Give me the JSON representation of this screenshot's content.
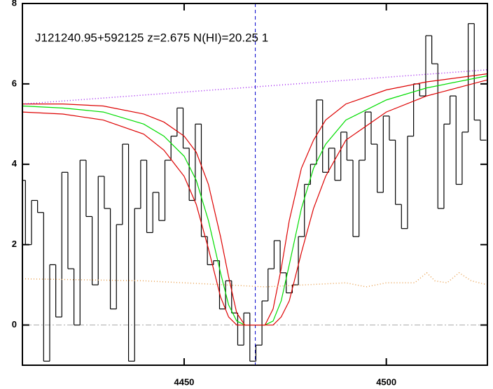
{
  "chart_data": {
    "type": "line",
    "title": "J121240.95+592125 z=2.675 N(HI)=20.25 1",
    "xlim": [
      4410,
      4525
    ],
    "ylim": [
      -1,
      8
    ],
    "xticks": [
      4450,
      4500
    ],
    "yticks": [
      0,
      2,
      4,
      6,
      8
    ],
    "hline": 0,
    "vline": 4467.6,
    "series": [
      {
        "color": "#000000",
        "style": "step",
        "x": [
          4410,
          4411.5,
          4413,
          4414.5,
          4416,
          4417.5,
          4419,
          4420.5,
          4422,
          4423.5,
          4425,
          4426.5,
          4428,
          4429.5,
          4431,
          4432.5,
          4434,
          4435.5,
          4437,
          4438.5,
          4440,
          4441.5,
          4443,
          4444.5,
          4446,
          4447.5,
          4449,
          4450.5,
          4452,
          4453.5,
          4455,
          4456.5,
          4458,
          4459.5,
          4461,
          4462.5,
          4464,
          4465.5,
          4467,
          4468.5,
          4470,
          4471.5,
          4473,
          4474.5,
          4476,
          4477.5,
          4479,
          4480.5,
          4482,
          4483.5,
          4485,
          4486.5,
          4488,
          4489.5,
          4491,
          4492.5,
          4494,
          4495.5,
          4497,
          4498.5,
          4500,
          4501.5,
          4503,
          4504.5,
          4506,
          4507.5,
          4509,
          4510.5,
          4512,
          4513.5,
          4515,
          4516.5,
          4518,
          4519.5,
          4521,
          4522.5,
          4524
        ],
        "values": [
          3.6,
          2.0,
          3.1,
          2.8,
          -0.9,
          1.5,
          0.2,
          3.8,
          1.4,
          0.0,
          4.1,
          2.7,
          1.0,
          3.7,
          2.9,
          0.4,
          2.5,
          4.5,
          -0.9,
          2.9,
          4.1,
          2.3,
          3.3,
          2.6,
          4.1,
          4.7,
          5.4,
          4.4,
          3.1,
          5.0,
          2.2,
          1.5,
          1.6,
          0.4,
          1.1,
          0.3,
          -0.5,
          0.3,
          -0.9,
          -0.5,
          0.6,
          1.4,
          2.1,
          1.3,
          0.8,
          1.0,
          2.2,
          3.5,
          4.0,
          5.6,
          3.8,
          4.4,
          3.6,
          4.8,
          4.1,
          2.2,
          4.1,
          5.3,
          4.5,
          3.3,
          5.2,
          4.6,
          3.0,
          2.4,
          4.7,
          6.0,
          5.7,
          7.2,
          6.5,
          2.9,
          5.0,
          5.7,
          3.5,
          4.8,
          7.5,
          5.1,
          4.6
        ]
      },
      {
        "color": "#00dd00",
        "style": "solid",
        "x": [
          4410,
          4420,
          4430,
          4440,
          4445,
          4450,
          4453,
          4456,
          4459,
          4461,
          4463,
          4465,
          4467.6,
          4470,
          4472,
          4474,
          4476,
          4479,
          4482,
          4485,
          4490,
          4500,
          4510,
          4525
        ],
        "values": [
          5.45,
          5.4,
          5.3,
          5.0,
          4.7,
          4.2,
          3.6,
          2.6,
          1.3,
          0.5,
          0.1,
          0.0,
          0.0,
          0.0,
          0.1,
          0.6,
          1.5,
          2.9,
          3.9,
          4.5,
          5.1,
          5.6,
          5.9,
          6.2
        ]
      },
      {
        "color": "#dd0000",
        "style": "solid",
        "x": [
          4410,
          4420,
          4430,
          4440,
          4445,
          4450,
          4453,
          4456,
          4459,
          4461,
          4463,
          4465,
          4467.6,
          4470,
          4472,
          4474,
          4476,
          4479,
          4482,
          4485,
          4490,
          4500,
          4510,
          4525
        ],
        "values": [
          5.5,
          5.5,
          5.45,
          5.25,
          5.05,
          4.7,
          4.3,
          3.5,
          2.2,
          1.2,
          0.3,
          0.0,
          0.0,
          0.0,
          0.4,
          1.4,
          2.6,
          3.9,
          4.6,
          5.1,
          5.5,
          5.85,
          6.05,
          6.25
        ]
      },
      {
        "color": "#dd0000",
        "style": "solid",
        "x": [
          4410,
          4420,
          4430,
          4440,
          4445,
          4450,
          4453,
          4456,
          4459,
          4461,
          4463,
          4465,
          4467.6,
          4470,
          4472,
          4474,
          4476,
          4479,
          4482,
          4485,
          4490,
          4500,
          4510,
          4525
        ],
        "values": [
          5.3,
          5.25,
          5.1,
          4.75,
          4.35,
          3.7,
          3.0,
          1.9,
          0.7,
          0.2,
          0.0,
          0.0,
          0.0,
          0.0,
          0.0,
          0.2,
          0.6,
          1.8,
          2.9,
          3.7,
          4.6,
          5.3,
          5.7,
          6.1
        ]
      },
      {
        "color": "#a020f0",
        "style": "dotted",
        "x": [
          4410,
          4525
        ],
        "values": [
          5.5,
          6.35
        ]
      },
      {
        "color": "#e8a050",
        "style": "dotted",
        "x": [
          4410,
          4440,
          4460,
          4470,
          4480,
          4490,
          4495,
          4500,
          4507,
          4510,
          4512,
          4515,
          4518,
          4521,
          4525
        ],
        "values": [
          1.15,
          1.1,
          1.0,
          0.95,
          1.0,
          1.05,
          0.95,
          1.05,
          1.05,
          1.3,
          1.1,
          1.05,
          1.3,
          1.1,
          1.0
        ]
      }
    ]
  }
}
